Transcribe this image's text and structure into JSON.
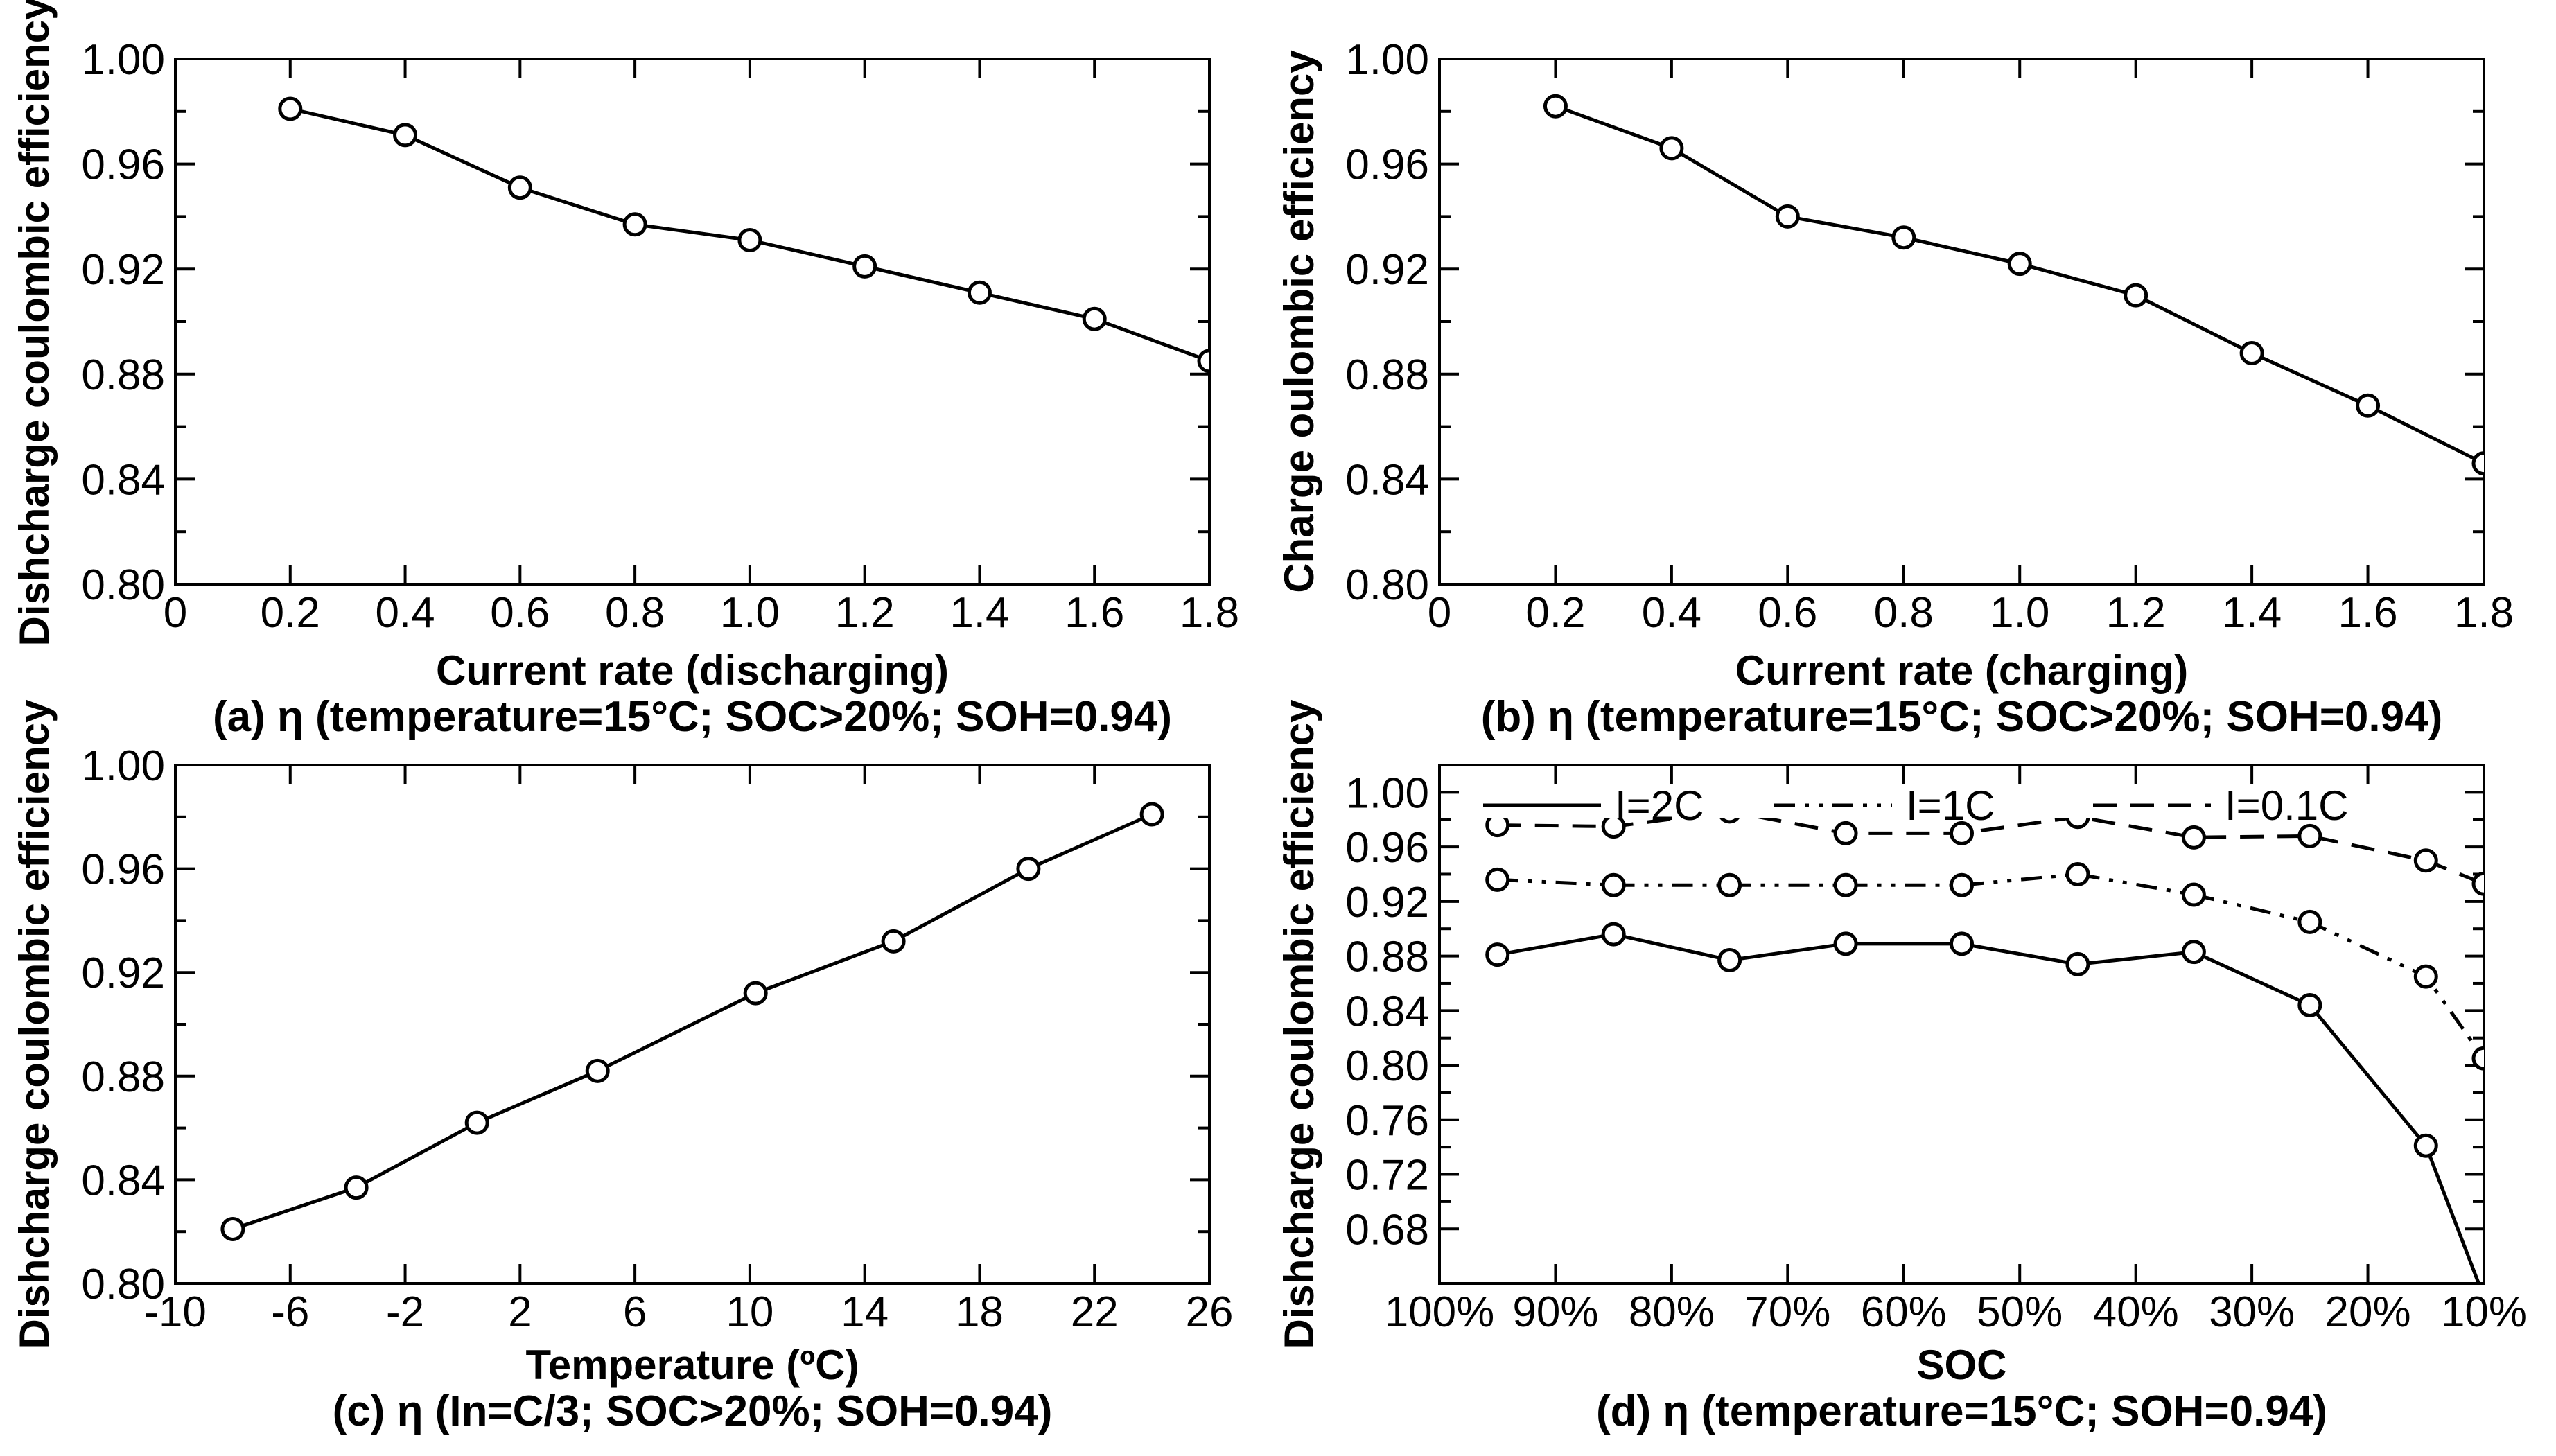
{
  "chart_data": [
    {
      "type": "line",
      "panel": "a",
      "caption": "(a) η (temperature=15°C; SOC>20%; SOH=0.94)",
      "xlabel": "Current rate (discharging)",
      "ylabel": "Dishcharge coulombic efficiency",
      "xlim": [
        0,
        1.8
      ],
      "ylim": [
        0.8,
        1.0
      ],
      "xticks": [
        "0",
        "0.2",
        "0.4",
        "0.6",
        "0.8",
        "1.0",
        "1.2",
        "1.4",
        "1.6",
        "1.8"
      ],
      "yticks": [
        "0.80",
        "0.84",
        "0.88",
        "0.92",
        "0.96",
        "1.00"
      ],
      "series": [
        {
          "name": "η",
          "style": "solid",
          "x": [
            0.2,
            0.4,
            0.6,
            0.8,
            1.0,
            1.2,
            1.4,
            1.6,
            1.8
          ],
          "y": [
            0.981,
            0.971,
            0.951,
            0.937,
            0.931,
            0.921,
            0.911,
            0.901,
            0.885
          ]
        }
      ]
    },
    {
      "type": "line",
      "panel": "b",
      "caption": "(b) η (temperature=15°C; SOC>20%; SOH=0.94)",
      "xlabel": "Current rate (charging)",
      "ylabel": "Charge oulombic efficiency",
      "xlim": [
        0,
        1.8
      ],
      "ylim": [
        0.8,
        1.0
      ],
      "xticks": [
        "0",
        "0.2",
        "0.4",
        "0.6",
        "0.8",
        "1.0",
        "1.2",
        "1.4",
        "1.6",
        "1.8"
      ],
      "yticks": [
        "0.80",
        "0.84",
        "0.88",
        "0.92",
        "0.96",
        "1.00"
      ],
      "series": [
        {
          "name": "η",
          "style": "solid",
          "x": [
            0.2,
            0.4,
            0.6,
            0.8,
            1.0,
            1.2,
            1.4,
            1.6,
            1.8
          ],
          "y": [
            0.982,
            0.966,
            0.94,
            0.932,
            0.922,
            0.91,
            0.888,
            0.868,
            0.846
          ]
        }
      ]
    },
    {
      "type": "line",
      "panel": "c",
      "caption": "(c) η (In=C/3; SOC>20%; SOH=0.94)",
      "xlabel": "Temperature (ºC)",
      "ylabel": "Dishcharge coulombic efficiency",
      "xlim": [
        -10,
        26
      ],
      "ylim": [
        0.8,
        1.0
      ],
      "xticks": [
        "-10",
        "-6",
        "-2",
        "2",
        "6",
        "10",
        "14",
        "18",
        "22",
        "26"
      ],
      "yticks": [
        "0.80",
        "0.84",
        "0.88",
        "0.92",
        "0.96",
        "1.00"
      ],
      "series": [
        {
          "name": "η",
          "style": "solid",
          "x": [
            -8,
            -3.7,
            0.5,
            4.7,
            10.2,
            15,
            19.7,
            24
          ],
          "y": [
            0.821,
            0.837,
            0.862,
            0.882,
            0.912,
            0.932,
            0.96,
            0.981
          ]
        }
      ]
    },
    {
      "type": "line",
      "panel": "d",
      "caption": "(d) η (temperature=15°C;  SOH=0.94)",
      "xlabel": "SOC",
      "ylabel": "Dishcharge coulombic efficiency",
      "xlim": [
        100,
        10
      ],
      "ylim": [
        0.64,
        1.02
      ],
      "xticks": [
        "100%",
        "90%",
        "80%",
        "70%",
        "60%",
        "50%",
        "40%",
        "30%",
        "20%",
        "10%"
      ],
      "yticks": [
        "0.68",
        "0.72",
        "0.76",
        "0.80",
        "0.84",
        "0.88",
        "0.92",
        "0.96",
        "1.00"
      ],
      "legend": [
        "I=2C",
        "I=1C",
        "I=0.1C"
      ],
      "legend_position": "top",
      "series": [
        {
          "name": "I=2C",
          "style": "solid",
          "x": [
            95,
            85,
            75,
            65,
            55,
            45,
            35,
            25,
            15,
            10
          ],
          "y": [
            0.881,
            0.896,
            0.877,
            0.889,
            0.889,
            0.874,
            0.883,
            0.844,
            0.741,
            0.63
          ],
          "markers": [
            true,
            true,
            true,
            true,
            true,
            true,
            true,
            true,
            true,
            false
          ]
        },
        {
          "name": "I=1C",
          "style": "dashdotdot",
          "x": [
            95,
            85,
            75,
            65,
            55,
            45,
            35,
            25,
            15,
            10
          ],
          "y": [
            0.936,
            0.932,
            0.932,
            0.932,
            0.932,
            0.94,
            0.925,
            0.905,
            0.865,
            0.805
          ]
        },
        {
          "name": "I=0.1C",
          "style": "dashed",
          "x": [
            95,
            85,
            75,
            65,
            55,
            45,
            35,
            25,
            15,
            10
          ],
          "y": [
            0.976,
            0.975,
            0.986,
            0.97,
            0.97,
            0.982,
            0.967,
            0.968,
            0.95,
            0.933
          ]
        }
      ]
    }
  ]
}
